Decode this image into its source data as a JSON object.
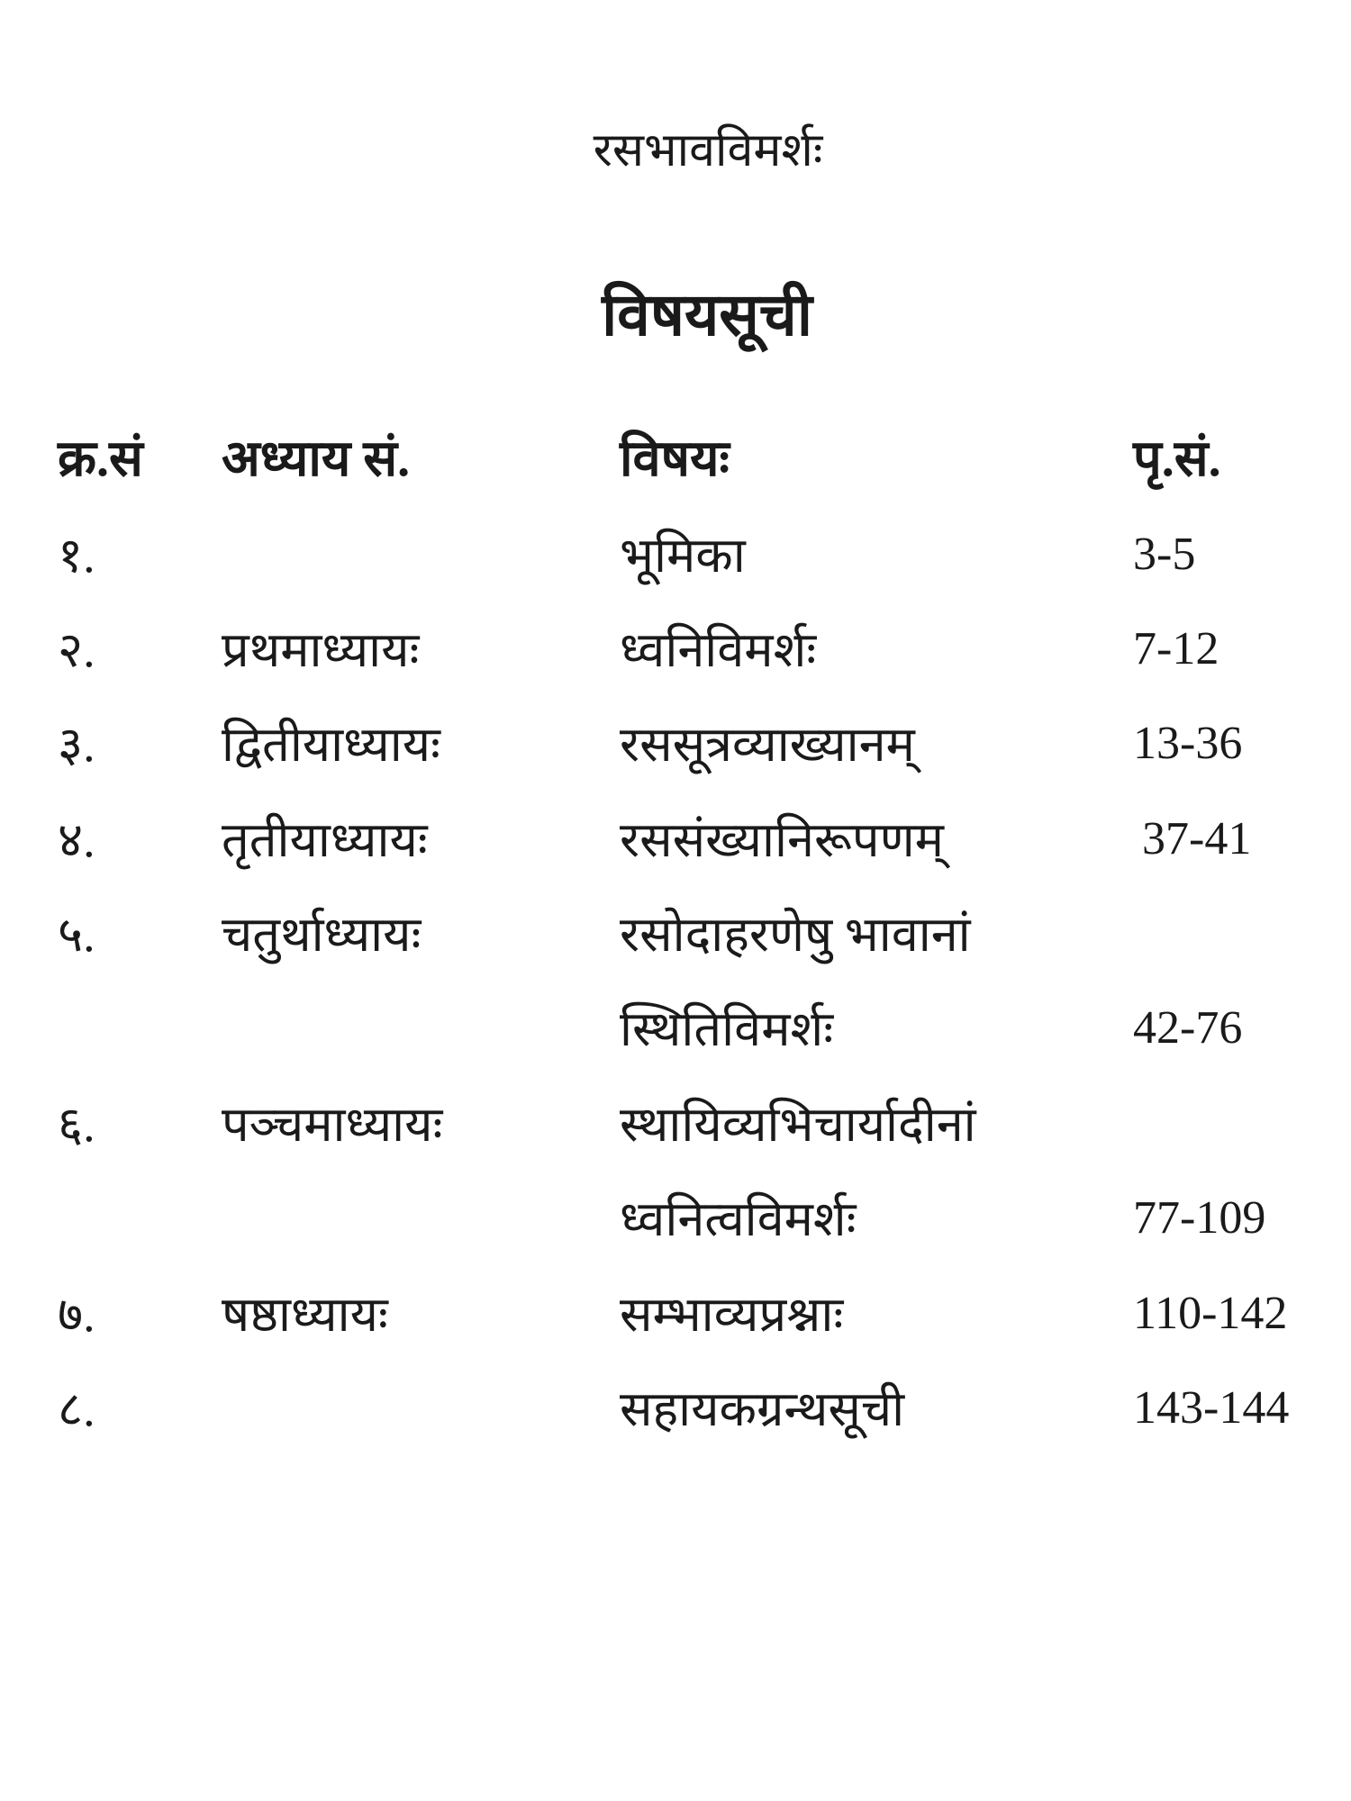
{
  "book_title": "रसभावविमर्शः",
  "heading": "विषयसूची",
  "columns": [
    "क्र.सं",
    "अध्याय सं.",
    "विषयः",
    "पृ.सं."
  ],
  "rows": [
    {
      "sn": "१.",
      "chapter": "",
      "topic": "भूमिका",
      "pages": "3-5"
    },
    {
      "sn": "२.",
      "chapter": "प्रथमाध्यायः",
      "topic": "ध्वनिविमर्शः",
      "pages": "7-12"
    },
    {
      "sn": "३.",
      "chapter": "द्वितीयाध्यायः",
      "topic": "रससूत्रव्याख्यानम्",
      "pages": "13-36"
    },
    {
      "sn": "४.",
      "chapter": "तृतीयाध्यायः",
      "topic": "रससंख्यानिरूपणम्",
      "pages": "37-41"
    },
    {
      "sn": "५.",
      "chapter": "चतुर्थाध्यायः",
      "topic": "रसोदाहरणेषु भावानां",
      "pages": ""
    },
    {
      "sn": "",
      "chapter": "",
      "topic": "स्थितिविमर्शः",
      "pages": "42-76"
    },
    {
      "sn": "६.",
      "chapter": "पञ्चमाध्यायः",
      "topic": "स्थायिव्यभिचार्यादीनां",
      "pages": ""
    },
    {
      "sn": "",
      "chapter": "",
      "topic": "ध्वनित्वविमर्शः",
      "pages": "77-109"
    },
    {
      "sn": "७.",
      "chapter": "षष्ठाध्यायः",
      "topic": "सम्भाव्यप्रश्नाः",
      "pages": "110-142"
    },
    {
      "sn": "८.",
      "chapter": "",
      "topic": "सहायकग्रन्थसूची",
      "pages": "143-144"
    }
  ]
}
